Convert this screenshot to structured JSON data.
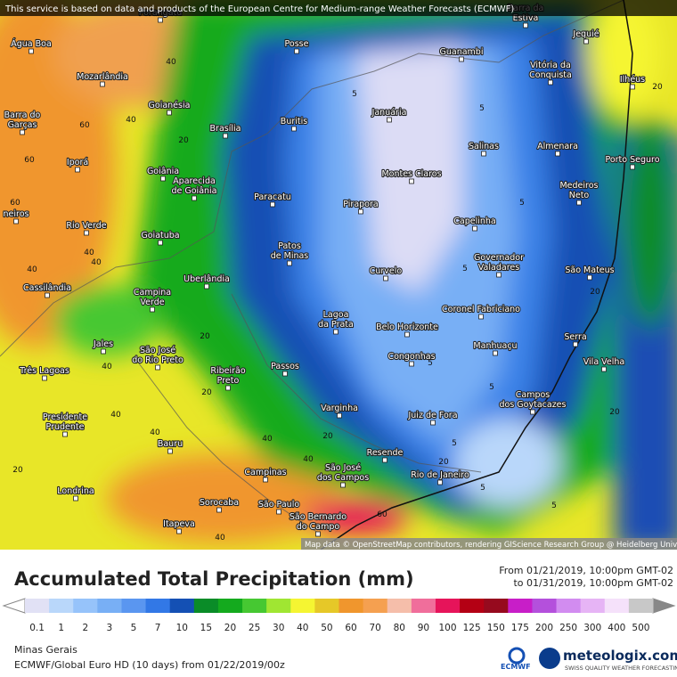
{
  "header": {
    "notice": "This service is based on data and products of the European Centre for Medium-range Weather Forecasts (ECMWF)"
  },
  "map": {
    "attribution": "Map data © OpenStreetMap contributors, rendering GIScience Research Group @ Heidelberg University",
    "cities": [
      [
        "Porangatu"
      ],
      [
        "Posse"
      ],
      [
        "Barra da",
        "Estiva"
      ],
      [
        "Jequié"
      ],
      [
        "Guanambi"
      ],
      [
        "Água Boa"
      ],
      [
        "Mozarlândia"
      ],
      [
        "Vitória da",
        "Conquista"
      ],
      [
        "Ilhéus"
      ],
      [
        "Goianésia"
      ],
      [
        "Januária"
      ],
      [
        "Barra do",
        "Garças"
      ],
      [
        "Brasília"
      ],
      [
        "Buritis"
      ],
      [
        "Salinas"
      ],
      [
        "Almenara"
      ],
      [
        "Iporá"
      ],
      [
        "Porto Seguro"
      ],
      [
        "Goiânia"
      ],
      [
        "Montes Claros"
      ],
      [
        "Aparecida",
        "de Goiânia"
      ],
      [
        "Paracatu"
      ],
      [
        "Pirapora"
      ],
      [
        "Medeiros",
        "Neto"
      ],
      [
        "Capelinha"
      ],
      [
        "Rio Verde"
      ],
      [
        "Goiatuba"
      ],
      [
        "Patos",
        "de Minas"
      ],
      [
        "Governador",
        "Valadares"
      ],
      [
        "São Mateus"
      ],
      [
        "Curvelo"
      ],
      [
        "Uberlândia"
      ],
      [
        "Cassilândia"
      ],
      [
        "Campina",
        "Verde"
      ],
      [
        "Coronel Fabriciano"
      ],
      [
        "Lagoa",
        "da Prata"
      ],
      [
        "Belo Horizonte"
      ],
      [
        "Serra"
      ],
      [
        "Jales"
      ],
      [
        "Manhuaçu"
      ],
      [
        "Vila Velha"
      ],
      [
        "São José",
        "do Rio Preto"
      ],
      [
        "Três Lagoas"
      ],
      [
        "Congonhas"
      ],
      [
        "Passos"
      ],
      [
        "Ribeirão",
        "Preto"
      ],
      [
        "Campos",
        "dos Goytacazes"
      ],
      [
        "Varginha"
      ],
      [
        "Juiz de Fora"
      ],
      [
        "Presidente",
        "Prudente"
      ],
      [
        "Bauru"
      ],
      [
        "Resende"
      ],
      [
        "Campinas"
      ],
      [
        "São José",
        "dos Campos"
      ],
      [
        "Rio de Janeiro"
      ],
      [
        "Londrina"
      ],
      [
        "Sorocaba"
      ],
      [
        "São Paulo"
      ],
      [
        "Itapeva"
      ],
      [
        "São Bernardo",
        "do Campo"
      ],
      [
        "neiros"
      ]
    ],
    "contours": [
      40,
      40,
      60,
      60,
      60,
      20,
      5,
      5,
      5,
      5,
      5,
      20,
      20,
      40,
      40,
      40,
      40,
      20,
      40,
      5,
      5,
      20,
      5,
      20,
      40,
      40,
      60,
      5,
      20,
      40,
      20,
      40,
      20
    ]
  },
  "legend": {
    "title": "Accumulated Total Precipitation (mm)",
    "from": "From 01/21/2019, 10:00pm GMT-02",
    "to": "to 01/31/2019, 10:00pm GMT-02",
    "levels": [
      0.1,
      1,
      2,
      3,
      5,
      7,
      10,
      15,
      20,
      25,
      30,
      40,
      50,
      60,
      70,
      80,
      90,
      100,
      125,
      150,
      175,
      200,
      250,
      300,
      400,
      500
    ],
    "colors": [
      "#e1e1f5",
      "#b9d7fa",
      "#96c3fa",
      "#78aff5",
      "#5a96f0",
      "#3278e6",
      "#1450b4",
      "#0a8c28",
      "#14aa1e",
      "#46c832",
      "#a0e632",
      "#f5f532",
      "#e6c828",
      "#f0962d",
      "#f5a050",
      "#f5beaa",
      "#f06e9b",
      "#e6145a",
      "#b40014",
      "#960a1e",
      "#c81ec8",
      "#b450dc",
      "#d28cf0",
      "#e6b4f5",
      "#f5e1fa",
      "#c8c8c8"
    ]
  },
  "footer": {
    "region": "Minas Gerais",
    "model": "ECMWF/Global Euro HD (10 days) from 01/22/2019/00z",
    "ecmwf": "ECMWF",
    "brand": "meteologix.com",
    "tagline": "SWISS QUALITY WEATHER FORECASTING"
  }
}
